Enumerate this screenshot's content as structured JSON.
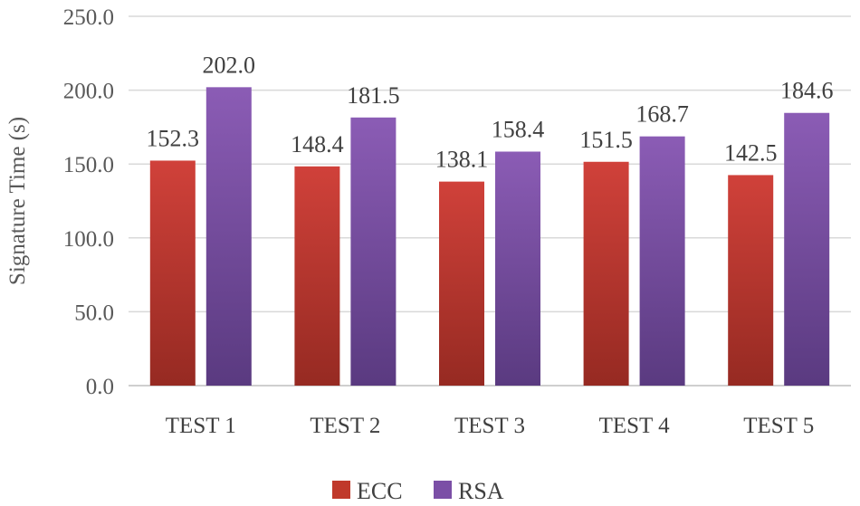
{
  "chart_data": {
    "type": "bar",
    "categories": [
      "TEST 1",
      "TEST 2",
      "TEST 3",
      "TEST 4",
      "TEST 5"
    ],
    "series": [
      {
        "name": "ECC",
        "values": [
          152.3,
          148.4,
          138.1,
          151.5,
          142.5
        ],
        "color": "#c0392b",
        "color_light": "#d0413a",
        "color_dark": "#962a22"
      },
      {
        "name": "RSA",
        "values": [
          202.0,
          181.5,
          158.4,
          168.7,
          184.6
        ],
        "color": "#7b4fa6",
        "color_light": "#8b5cb5",
        "color_dark": "#5a3a80"
      }
    ],
    "data_labels": [
      [
        "152.3",
        "148.4",
        "138.1",
        "151.5",
        "142.5"
      ],
      [
        "202.0",
        "181.5",
        "158.4",
        "168.7",
        "184.6"
      ]
    ],
    "yticks": [
      "0.0",
      "50.0",
      "100.0",
      "150.0",
      "200.0",
      "250.0"
    ],
    "ylim": [
      0,
      250
    ],
    "ytick_step": 50,
    "title": "",
    "xlabel": "",
    "ylabel": "Signature Time (s)",
    "grid": true,
    "legend_position": "bottom-center"
  }
}
